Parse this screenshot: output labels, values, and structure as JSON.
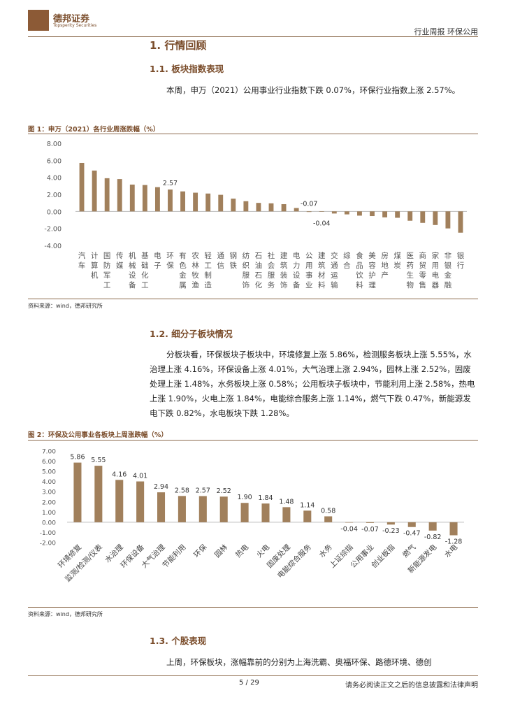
{
  "header": {
    "brand_name": "德邦证券",
    "brand_sub": "Topsperity Securities",
    "report_tag": "行业周报  环保公用"
  },
  "section1": {
    "title": "1. 行情回顾"
  },
  "section1_1": {
    "title": "1.1. 板块指数表现",
    "paragraph": "本周，申万（2021）公用事业行业指数下跌 0.07%，环保行业指数上涨 2.57%。"
  },
  "figure1": {
    "title": "图 1：申万（2021）各行业周涨跌幅（%）",
    "source": "资料来源：wind，德邦研究所"
  },
  "section1_2": {
    "title": "1.2. 细分子板块情况",
    "paragraph": "分板块看，环保板块子板块中，环境修复上涨 5.86%，检测服务板块上涨 5.55%，水治理上涨 4.16%，环保设备上涨 4.01%，大气治理上涨 2.94%，园林上涨 2.52%，固废处理上涨 1.48%，水务板块上涨 0.58%；公用板块子板块中，节能利用上涨 2.58%，热电上涨 1.90%，火电上涨 1.84%，电能综合服务上涨 1.14%，燃气下跌 0.47%，新能源发电下跌 0.82%，水电板块下跌 1.28%。"
  },
  "figure2": {
    "title": "图 2：环保及公用事业各板块上周涨跌幅（%）",
    "source": "资料来源：wind，德邦研究所"
  },
  "section1_3": {
    "title": "1.3. 个股表现",
    "paragraph": "上周，环保板块，涨幅靠前的分别为上海洗霸、奥福环保、路德环境、德创"
  },
  "footer": {
    "page": "5 / 29",
    "disclaimer": "请务必阅读正文之后的信息披露和法律声明"
  },
  "colors": {
    "bar": "#a1805c",
    "accent": "#7a4c2a"
  },
  "chart_data": [
    {
      "type": "bar",
      "categories": [
        "汽车",
        "计算机",
        "国防军工",
        "传媒",
        "机械设备",
        "基础化工",
        "电子",
        "环保",
        "有色金属",
        "农林牧渔",
        "轻工制造",
        "通信",
        "钢铁",
        "纺织服饰",
        "石油石化",
        "社会服务",
        "建筑装饰",
        "电力设备",
        "公用事业",
        "建筑材料",
        "交通运输",
        "综合",
        "食品饮料",
        "美容护理",
        "房地产",
        "煤炭",
        "医药生物",
        "商贸零售",
        "家用电器",
        "非银金融",
        "银行"
      ],
      "values": [
        5.7,
        4.8,
        3.9,
        3.8,
        3.15,
        3.1,
        2.85,
        2.57,
        2.35,
        2.2,
        2.1,
        1.95,
        1.5,
        1.2,
        1.0,
        0.95,
        0.85,
        0.4,
        -0.07,
        -0.04,
        -0.25,
        -0.35,
        -0.5,
        -0.55,
        -0.7,
        -0.75,
        -1.1,
        -1.35,
        -1.6,
        -2.0,
        -2.5
      ],
      "data_labels": [
        {
          "category": "环保",
          "text": "2.57"
        },
        {
          "category": "公用事业",
          "text": "-0.07"
        },
        {
          "category": "建筑材料",
          "text": "-0.04"
        }
      ],
      "yticks": [
        "8.00",
        "6.00",
        "4.00",
        "2.00",
        "0.00",
        "-2.00",
        "-4.00"
      ],
      "ylim": [
        -4,
        8
      ],
      "grid": false
    },
    {
      "type": "bar",
      "categories": [
        "环境修复",
        "监测/检测/仪表",
        "水治理",
        "环保设备",
        "大气治理",
        "节能利用",
        "环保",
        "园林",
        "热电",
        "火电",
        "固废处理",
        "电能综合服务",
        "水务",
        "上证综指",
        "公用事业",
        "创业板指",
        "燃气",
        "新能源发电",
        "水电"
      ],
      "values": [
        5.86,
        5.55,
        4.16,
        4.01,
        2.94,
        2.58,
        2.57,
        2.52,
        1.9,
        1.84,
        1.48,
        1.14,
        0.58,
        -0.04,
        -0.07,
        -0.23,
        -0.47,
        -0.82,
        -1.28
      ],
      "labels": [
        "5.86",
        "5.55",
        "4.16",
        "4.01",
        "2.94",
        "2.58",
        "2.57",
        "2.52",
        "1.90",
        "1.84",
        "1.48",
        "1.14",
        "0.58",
        "-0.04",
        "-0.07",
        "-0.23",
        "-0.47",
        "-0.82",
        "-1.28"
      ],
      "yticks": [
        "7.00",
        "6.00",
        "5.00",
        "4.00",
        "3.00",
        "2.00",
        "1.00",
        "0.00",
        "-1.00",
        "-2.00"
      ],
      "ylim": [
        -2,
        7
      ],
      "grid": false
    }
  ]
}
